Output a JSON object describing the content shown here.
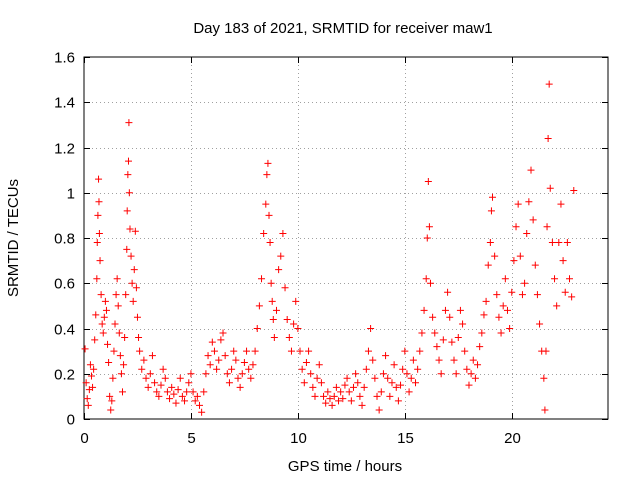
{
  "chart_data": {
    "type": "scatter",
    "title": "Day 183 of 2021, SRMTID for receiver maw1",
    "xlabel": "GPS time / hours",
    "ylabel": "SRMTID / TECUs",
    "xlim": [
      0,
      24.5
    ],
    "ylim": [
      0,
      1.6
    ],
    "x_ticks": [
      0,
      5,
      10,
      15,
      20
    ],
    "x_tick_labels": [
      "0",
      "5",
      "10",
      "15",
      "20"
    ],
    "y_ticks": [
      0,
      0.2,
      0.4,
      0.6,
      0.8,
      1,
      1.2,
      1.4,
      1.6
    ],
    "y_tick_labels": [
      "0",
      "0.2",
      "0.4",
      "0.6",
      "0.8",
      "1",
      "1.2",
      "1.4",
      "1.6"
    ],
    "grid": true,
    "marker": "plus",
    "color": "#ff0000",
    "series": [
      {
        "name": "SRMTID",
        "points": [
          [
            0.05,
            0.31
          ],
          [
            0.1,
            0.16
          ],
          [
            0.15,
            0.09
          ],
          [
            0.2,
            0.06
          ],
          [
            0.25,
            0.13
          ],
          [
            0.3,
            0.24
          ],
          [
            0.35,
            0.19
          ],
          [
            0.4,
            0.14
          ],
          [
            0.45,
            0.22
          ],
          [
            0.5,
            0.35
          ],
          [
            0.55,
            0.46
          ],
          [
            0.6,
            0.62
          ],
          [
            0.62,
            0.78
          ],
          [
            0.65,
            0.9
          ],
          [
            0.68,
            1.06
          ],
          [
            0.7,
            0.96
          ],
          [
            0.72,
            0.82
          ],
          [
            0.75,
            0.7
          ],
          [
            0.8,
            0.55
          ],
          [
            0.85,
            0.42
          ],
          [
            0.9,
            0.38
          ],
          [
            0.95,
            0.45
          ],
          [
            1.0,
            0.52
          ],
          [
            1.05,
            0.48
          ],
          [
            1.1,
            0.33
          ],
          [
            1.15,
            0.25
          ],
          [
            1.2,
            0.1
          ],
          [
            1.25,
            0.04
          ],
          [
            1.3,
            0.08
          ],
          [
            1.35,
            0.18
          ],
          [
            1.4,
            0.3
          ],
          [
            1.45,
            0.42
          ],
          [
            1.5,
            0.55
          ],
          [
            1.55,
            0.62
          ],
          [
            1.6,
            0.5
          ],
          [
            1.65,
            0.38
          ],
          [
            1.7,
            0.28
          ],
          [
            1.75,
            0.2
          ],
          [
            1.8,
            0.12
          ],
          [
            1.85,
            0.24
          ],
          [
            1.9,
            0.36
          ],
          [
            1.95,
            0.55
          ],
          [
            2.0,
            0.75
          ],
          [
            2.02,
            0.92
          ],
          [
            2.05,
            1.08
          ],
          [
            2.08,
            1.14
          ],
          [
            2.1,
            1.31
          ],
          [
            2.12,
            1.0
          ],
          [
            2.15,
            0.84
          ],
          [
            2.2,
            0.72
          ],
          [
            2.25,
            0.6
          ],
          [
            2.3,
            0.52
          ],
          [
            2.35,
            0.66
          ],
          [
            2.4,
            0.83
          ],
          [
            2.45,
            0.58
          ],
          [
            2.5,
            0.45
          ],
          [
            2.55,
            0.36
          ],
          [
            2.6,
            0.3
          ],
          [
            2.7,
            0.22
          ],
          [
            2.8,
            0.26
          ],
          [
            2.9,
            0.18
          ],
          [
            3.0,
            0.14
          ],
          [
            3.1,
            0.2
          ],
          [
            3.2,
            0.28
          ],
          [
            3.3,
            0.16
          ],
          [
            3.4,
            0.12
          ],
          [
            3.5,
            0.1
          ],
          [
            3.6,
            0.15
          ],
          [
            3.7,
            0.22
          ],
          [
            3.8,
            0.18
          ],
          [
            3.9,
            0.12
          ],
          [
            4.0,
            0.09
          ],
          [
            4.1,
            0.14
          ],
          [
            4.2,
            0.11
          ],
          [
            4.3,
            0.07
          ],
          [
            4.4,
            0.13
          ],
          [
            4.5,
            0.18
          ],
          [
            4.6,
            0.1
          ],
          [
            4.7,
            0.08
          ],
          [
            4.8,
            0.12
          ],
          [
            4.9,
            0.16
          ],
          [
            5.0,
            0.2
          ],
          [
            5.1,
            0.12
          ],
          [
            5.2,
            0.08
          ],
          [
            5.3,
            0.1
          ],
          [
            5.4,
            0.06
          ],
          [
            5.5,
            0.03
          ],
          [
            5.6,
            0.12
          ],
          [
            5.7,
            0.2
          ],
          [
            5.8,
            0.28
          ],
          [
            5.9,
            0.24
          ],
          [
            6.0,
            0.34
          ],
          [
            6.1,
            0.3
          ],
          [
            6.2,
            0.22
          ],
          [
            6.3,
            0.26
          ],
          [
            6.4,
            0.35
          ],
          [
            6.5,
            0.38
          ],
          [
            6.6,
            0.28
          ],
          [
            6.7,
            0.2
          ],
          [
            6.8,
            0.16
          ],
          [
            6.9,
            0.22
          ],
          [
            7.0,
            0.3
          ],
          [
            7.1,
            0.26
          ],
          [
            7.2,
            0.18
          ],
          [
            7.3,
            0.14
          ],
          [
            7.4,
            0.2
          ],
          [
            7.5,
            0.25
          ],
          [
            7.6,
            0.3
          ],
          [
            7.7,
            0.22
          ],
          [
            7.8,
            0.18
          ],
          [
            7.9,
            0.24
          ],
          [
            8.0,
            0.3
          ],
          [
            8.1,
            0.4
          ],
          [
            8.2,
            0.5
          ],
          [
            8.3,
            0.62
          ],
          [
            8.4,
            0.82
          ],
          [
            8.5,
            0.95
          ],
          [
            8.55,
            1.08
          ],
          [
            8.6,
            1.13
          ],
          [
            8.65,
            0.9
          ],
          [
            8.7,
            0.78
          ],
          [
            8.75,
            0.6
          ],
          [
            8.8,
            0.52
          ],
          [
            8.85,
            0.44
          ],
          [
            8.9,
            0.36
          ],
          [
            9.0,
            0.48
          ],
          [
            9.1,
            0.66
          ],
          [
            9.2,
            0.72
          ],
          [
            9.3,
            0.82
          ],
          [
            9.4,
            0.58
          ],
          [
            9.5,
            0.44
          ],
          [
            9.6,
            0.36
          ],
          [
            9.7,
            0.3
          ],
          [
            9.8,
            0.42
          ],
          [
            9.9,
            0.52
          ],
          [
            10.0,
            0.4
          ],
          [
            10.1,
            0.3
          ],
          [
            10.2,
            0.22
          ],
          [
            10.3,
            0.16
          ],
          [
            10.4,
            0.25
          ],
          [
            10.5,
            0.3
          ],
          [
            10.6,
            0.2
          ],
          [
            10.7,
            0.14
          ],
          [
            10.8,
            0.1
          ],
          [
            10.9,
            0.18
          ],
          [
            11.0,
            0.24
          ],
          [
            11.1,
            0.16
          ],
          [
            11.2,
            0.1
          ],
          [
            11.3,
            0.07
          ],
          [
            11.4,
            0.12
          ],
          [
            11.5,
            0.09
          ],
          [
            11.6,
            0.06
          ],
          [
            11.7,
            0.1
          ],
          [
            11.8,
            0.14
          ],
          [
            11.9,
            0.08
          ],
          [
            12.0,
            0.12
          ],
          [
            12.1,
            0.09
          ],
          [
            12.2,
            0.15
          ],
          [
            12.3,
            0.18
          ],
          [
            12.4,
            0.12
          ],
          [
            12.5,
            0.08
          ],
          [
            12.6,
            0.14
          ],
          [
            12.7,
            0.2
          ],
          [
            12.8,
            0.16
          ],
          [
            12.9,
            0.1
          ],
          [
            13.0,
            0.06
          ],
          [
            13.1,
            0.14
          ],
          [
            13.2,
            0.22
          ],
          [
            13.3,
            0.3
          ],
          [
            13.4,
            0.4
          ],
          [
            13.5,
            0.26
          ],
          [
            13.6,
            0.18
          ],
          [
            13.7,
            0.1
          ],
          [
            13.8,
            0.04
          ],
          [
            13.9,
            0.12
          ],
          [
            14.0,
            0.2
          ],
          [
            14.1,
            0.28
          ],
          [
            14.2,
            0.18
          ],
          [
            14.3,
            0.1
          ],
          [
            14.4,
            0.16
          ],
          [
            14.5,
            0.24
          ],
          [
            14.6,
            0.14
          ],
          [
            14.7,
            0.08
          ],
          [
            14.8,
            0.15
          ],
          [
            14.9,
            0.22
          ],
          [
            15.0,
            0.3
          ],
          [
            15.1,
            0.2
          ],
          [
            15.2,
            0.12
          ],
          [
            15.3,
            0.18
          ],
          [
            15.4,
            0.26
          ],
          [
            15.5,
            0.16
          ],
          [
            15.6,
            0.22
          ],
          [
            15.7,
            0.3
          ],
          [
            15.8,
            0.38
          ],
          [
            15.9,
            0.48
          ],
          [
            16.0,
            0.62
          ],
          [
            16.05,
            0.8
          ],
          [
            16.1,
            1.05
          ],
          [
            16.15,
            0.85
          ],
          [
            16.2,
            0.6
          ],
          [
            16.3,
            0.45
          ],
          [
            16.4,
            0.38
          ],
          [
            16.5,
            0.32
          ],
          [
            16.6,
            0.26
          ],
          [
            16.7,
            0.2
          ],
          [
            16.8,
            0.35
          ],
          [
            16.9,
            0.48
          ],
          [
            17.0,
            0.56
          ],
          [
            17.1,
            0.45
          ],
          [
            17.2,
            0.34
          ],
          [
            17.3,
            0.26
          ],
          [
            17.4,
            0.2
          ],
          [
            17.5,
            0.36
          ],
          [
            17.6,
            0.48
          ],
          [
            17.7,
            0.42
          ],
          [
            17.8,
            0.3
          ],
          [
            17.9,
            0.22
          ],
          [
            18.0,
            0.15
          ],
          [
            18.1,
            0.2
          ],
          [
            18.2,
            0.26
          ],
          [
            18.3,
            0.18
          ],
          [
            18.4,
            0.24
          ],
          [
            18.5,
            0.32
          ],
          [
            18.6,
            0.38
          ],
          [
            18.7,
            0.46
          ],
          [
            18.8,
            0.52
          ],
          [
            18.9,
            0.68
          ],
          [
            19.0,
            0.78
          ],
          [
            19.05,
            0.92
          ],
          [
            19.1,
            0.98
          ],
          [
            19.2,
            0.72
          ],
          [
            19.3,
            0.55
          ],
          [
            19.4,
            0.45
          ],
          [
            19.5,
            0.38
          ],
          [
            19.6,
            0.5
          ],
          [
            19.7,
            0.62
          ],
          [
            19.8,
            0.48
          ],
          [
            19.9,
            0.4
          ],
          [
            20.0,
            0.56
          ],
          [
            20.1,
            0.7
          ],
          [
            20.2,
            0.85
          ],
          [
            20.3,
            0.95
          ],
          [
            20.4,
            0.72
          ],
          [
            20.5,
            0.55
          ],
          [
            20.6,
            0.6
          ],
          [
            20.7,
            0.82
          ],
          [
            20.8,
            0.96
          ],
          [
            20.9,
            1.1
          ],
          [
            21.0,
            0.88
          ],
          [
            21.1,
            0.68
          ],
          [
            21.2,
            0.55
          ],
          [
            21.3,
            0.42
          ],
          [
            21.4,
            0.3
          ],
          [
            21.5,
            0.18
          ],
          [
            21.55,
            0.04
          ],
          [
            21.6,
            0.3
          ],
          [
            21.65,
            0.85
          ],
          [
            21.7,
            1.24
          ],
          [
            21.75,
            1.48
          ],
          [
            21.8,
            1.02
          ],
          [
            21.9,
            0.78
          ],
          [
            22.0,
            0.62
          ],
          [
            22.1,
            0.5
          ],
          [
            22.2,
            0.78
          ],
          [
            22.3,
            0.95
          ],
          [
            22.4,
            0.7
          ],
          [
            22.5,
            0.56
          ],
          [
            22.6,
            0.78
          ],
          [
            22.7,
            0.62
          ],
          [
            22.8,
            0.54
          ],
          [
            22.9,
            1.01
          ]
        ]
      }
    ]
  }
}
